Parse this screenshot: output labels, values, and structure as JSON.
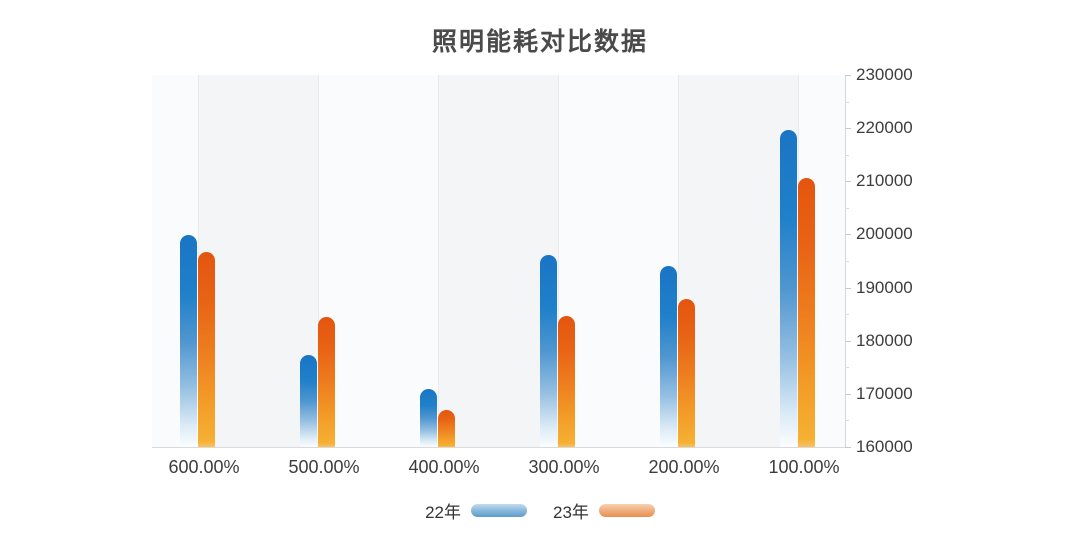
{
  "title": "照明能耗对比数据",
  "legend": {
    "items": [
      {
        "label": "22年",
        "series_index": 0
      },
      {
        "label": "23年",
        "series_index": 1
      }
    ]
  },
  "y_axis": {
    "side": "right",
    "tick_labels": [
      "230000",
      "220000",
      "210000",
      "200000",
      "190000",
      "180000",
      "170000",
      "160000"
    ]
  },
  "x_axis": {
    "tick_labels": [
      "600.00%",
      "500.00%",
      "400.00%",
      "300.00%",
      "200.00%",
      "100.00%"
    ]
  },
  "chart_data": {
    "type": "bar",
    "title": "照明能耗对比数据",
    "categories": [
      "600.00%",
      "500.00%",
      "400.00%",
      "300.00%",
      "200.00%",
      "100.00%"
    ],
    "series": [
      {
        "name": "22年",
        "color": "#1a75c5",
        "values": [
          199900,
          177300,
          171000,
          196200,
          194100,
          219600
        ]
      },
      {
        "name": "23年",
        "color": "#e8611a",
        "values": [
          196600,
          184400,
          166900,
          184600,
          187800,
          210700
        ]
      }
    ],
    "ylim": [
      160000,
      230000
    ],
    "y_tick_step": 10000,
    "y_minor_tick_step": 5000,
    "xlabel": "",
    "ylabel": "",
    "y_axis_side": "right",
    "legend_position": "bottom",
    "grid": "alternating-vertical-bands",
    "band_colors": [
      "#fafbfc",
      "#f4f5f7"
    ],
    "bar_style": "rounded-top-gradient-fade"
  }
}
